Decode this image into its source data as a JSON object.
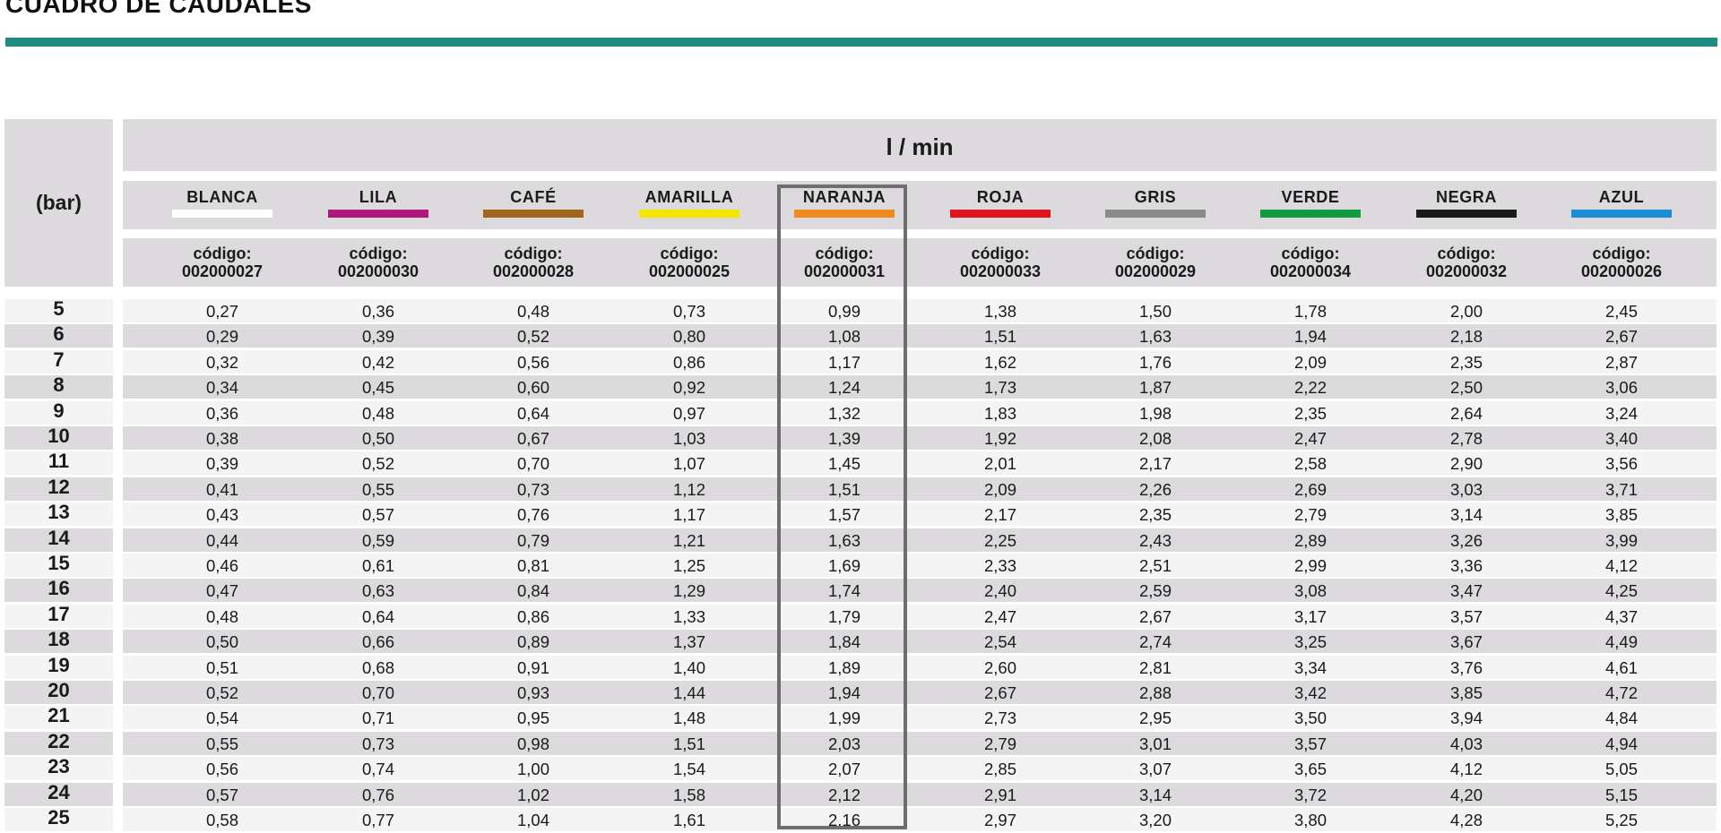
{
  "title": "CUADRO DE CAUDALES",
  "row_header": "(bar)",
  "unit_header": "l / min",
  "columns": [
    {
      "name": "BLANCA",
      "code_label": "código:",
      "code": "002000027",
      "color": "#ffffff"
    },
    {
      "name": "LILA",
      "code_label": "código:",
      "code": "002000030",
      "color": "#b0177c"
    },
    {
      "name": "CAFÉ",
      "code_label": "código:",
      "code": "002000028",
      "color": "#a0661d"
    },
    {
      "name": "AMARILLA",
      "code_label": "código:",
      "code": "002000025",
      "color": "#f4e600"
    },
    {
      "name": "NARANJA",
      "code_label": "código:",
      "code": "002000031",
      "color": "#f08a1c"
    },
    {
      "name": "ROJA",
      "code_label": "código:",
      "code": "002000033",
      "color": "#e3131d"
    },
    {
      "name": "GRIS",
      "code_label": "código:",
      "code": "002000029",
      "color": "#8a8a8a"
    },
    {
      "name": "VERDE",
      "code_label": "código:",
      "code": "002000034",
      "color": "#119a3f"
    },
    {
      "name": "NEGRA",
      "code_label": "código:",
      "code": "002000032",
      "color": "#1a1a1a"
    },
    {
      "name": "AZUL",
      "code_label": "código:",
      "code": "002000026",
      "color": "#1b8fd6"
    }
  ],
  "highlighted_column": "NARANJA",
  "rows": [
    {
      "bar": "5",
      "values": [
        "0,27",
        "0,36",
        "0,48",
        "0,73",
        "0,99",
        "1,38",
        "1,50",
        "1,78",
        "2,00",
        "2,45"
      ]
    },
    {
      "bar": "6",
      "values": [
        "0,29",
        "0,39",
        "0,52",
        "0,80",
        "1,08",
        "1,51",
        "1,63",
        "1,94",
        "2,18",
        "2,67"
      ]
    },
    {
      "bar": "7",
      "values": [
        "0,32",
        "0,42",
        "0,56",
        "0,86",
        "1,17",
        "1,62",
        "1,76",
        "2,09",
        "2,35",
        "2,87"
      ]
    },
    {
      "bar": "8",
      "values": [
        "0,34",
        "0,45",
        "0,60",
        "0,92",
        "1,24",
        "1,73",
        "1,87",
        "2,22",
        "2,50",
        "3,06"
      ]
    },
    {
      "bar": "9",
      "values": [
        "0,36",
        "0,48",
        "0,64",
        "0,97",
        "1,32",
        "1,83",
        "1,98",
        "2,35",
        "2,64",
        "3,24"
      ]
    },
    {
      "bar": "10",
      "values": [
        "0,38",
        "0,50",
        "0,67",
        "1,03",
        "1,39",
        "1,92",
        "2,08",
        "2,47",
        "2,78",
        "3,40"
      ]
    },
    {
      "bar": "11",
      "values": [
        "0,39",
        "0,52",
        "0,70",
        "1,07",
        "1,45",
        "2,01",
        "2,17",
        "2,58",
        "2,90",
        "3,56"
      ]
    },
    {
      "bar": "12",
      "values": [
        "0,41",
        "0,55",
        "0,73",
        "1,12",
        "1,51",
        "2,09",
        "2,26",
        "2,69",
        "3,03",
        "3,71"
      ]
    },
    {
      "bar": "13",
      "values": [
        "0,43",
        "0,57",
        "0,76",
        "1,17",
        "1,57",
        "2,17",
        "2,35",
        "2,79",
        "3,14",
        "3,85"
      ]
    },
    {
      "bar": "14",
      "values": [
        "0,44",
        "0,59",
        "0,79",
        "1,21",
        "1,63",
        "2,25",
        "2,43",
        "2,89",
        "3,26",
        "3,99"
      ]
    },
    {
      "bar": "15",
      "values": [
        "0,46",
        "0,61",
        "0,81",
        "1,25",
        "1,69",
        "2,33",
        "2,51",
        "2,99",
        "3,36",
        "4,12"
      ]
    },
    {
      "bar": "16",
      "values": [
        "0,47",
        "0,63",
        "0,84",
        "1,29",
        "1,74",
        "2,40",
        "2,59",
        "3,08",
        "3,47",
        "4,25"
      ]
    },
    {
      "bar": "17",
      "values": [
        "0,48",
        "0,64",
        "0,86",
        "1,33",
        "1,79",
        "2,47",
        "2,67",
        "3,17",
        "3,57",
        "4,37"
      ]
    },
    {
      "bar": "18",
      "values": [
        "0,50",
        "0,66",
        "0,89",
        "1,37",
        "1,84",
        "2,54",
        "2,74",
        "3,25",
        "3,67",
        "4,49"
      ]
    },
    {
      "bar": "19",
      "values": [
        "0,51",
        "0,68",
        "0,91",
        "1,40",
        "1,89",
        "2,60",
        "2,81",
        "3,34",
        "3,76",
        "4,61"
      ]
    },
    {
      "bar": "20",
      "values": [
        "0,52",
        "0,70",
        "0,93",
        "1,44",
        "1,94",
        "2,67",
        "2,88",
        "3,42",
        "3,85",
        "4,72"
      ]
    },
    {
      "bar": "21",
      "values": [
        "0,54",
        "0,71",
        "0,95",
        "1,48",
        "1,99",
        "2,73",
        "2,95",
        "3,50",
        "3,94",
        "4,84"
      ]
    },
    {
      "bar": "22",
      "values": [
        "0,55",
        "0,73",
        "0,98",
        "1,51",
        "2,03",
        "2,79",
        "3,01",
        "3,57",
        "4,03",
        "4,94"
      ]
    },
    {
      "bar": "23",
      "values": [
        "0,56",
        "0,74",
        "1,00",
        "1,54",
        "2,07",
        "2,85",
        "3,07",
        "3,65",
        "4,12",
        "5,05"
      ]
    },
    {
      "bar": "24",
      "values": [
        "0,57",
        "0,76",
        "1,02",
        "1,58",
        "2,12",
        "2,91",
        "3,14",
        "3,72",
        "4,20",
        "5,15"
      ]
    },
    {
      "bar": "25",
      "values": [
        "0,58",
        "0,77",
        "1,04",
        "1,61",
        "2,16",
        "2,97",
        "3,20",
        "3,80",
        "4,28",
        "5,25"
      ]
    }
  ]
}
